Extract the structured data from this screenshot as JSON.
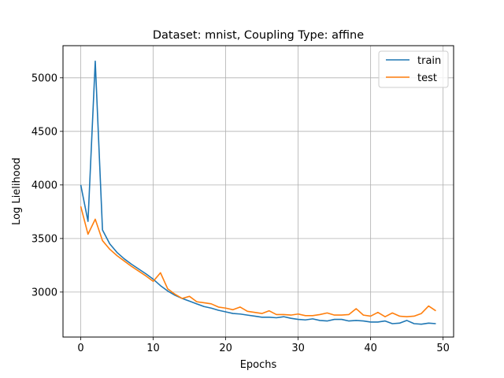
{
  "chart_data": {
    "type": "line",
    "title": "Dataset: mnist, Coupling Type: affine",
    "xlabel": "Epochs",
    "ylabel": "Log Lielihood",
    "xlim": [
      -2.45,
      51.45
    ],
    "ylim": [
      2580,
      5300
    ],
    "xticks": [
      0,
      10,
      20,
      30,
      40,
      50
    ],
    "yticks": [
      3000,
      3500,
      4000,
      4500,
      5000
    ],
    "grid": true,
    "legend_position": "top-right",
    "x": [
      0,
      1,
      2,
      3,
      4,
      5,
      6,
      7,
      8,
      9,
      10,
      11,
      12,
      13,
      14,
      15,
      16,
      17,
      18,
      19,
      20,
      21,
      22,
      23,
      24,
      25,
      26,
      27,
      28,
      29,
      30,
      31,
      32,
      33,
      34,
      35,
      36,
      37,
      38,
      39,
      40,
      41,
      42,
      43,
      44,
      45,
      46,
      47,
      48,
      49
    ],
    "series": [
      {
        "name": "train",
        "color": "#1f77b4",
        "values": [
          4000,
          3660,
          5155,
          3580,
          3450,
          3370,
          3310,
          3260,
          3215,
          3170,
          3120,
          3060,
          3010,
          2970,
          2940,
          2915,
          2890,
          2865,
          2850,
          2830,
          2815,
          2800,
          2795,
          2785,
          2775,
          2765,
          2765,
          2760,
          2770,
          2755,
          2745,
          2740,
          2750,
          2735,
          2730,
          2745,
          2745,
          2730,
          2735,
          2730,
          2720,
          2720,
          2730,
          2705,
          2710,
          2735,
          2705,
          2700,
          2710,
          2705
        ]
      },
      {
        "name": "test",
        "color": "#ff7f0e",
        "values": [
          3800,
          3540,
          3680,
          3480,
          3400,
          3340,
          3290,
          3240,
          3195,
          3150,
          3100,
          3180,
          3030,
          2980,
          2940,
          2960,
          2910,
          2900,
          2890,
          2860,
          2850,
          2835,
          2860,
          2820,
          2810,
          2800,
          2825,
          2790,
          2790,
          2785,
          2795,
          2780,
          2780,
          2790,
          2805,
          2785,
          2785,
          2790,
          2845,
          2785,
          2775,
          2810,
          2770,
          2805,
          2775,
          2770,
          2775,
          2800,
          2870,
          2825
        ]
      }
    ]
  }
}
